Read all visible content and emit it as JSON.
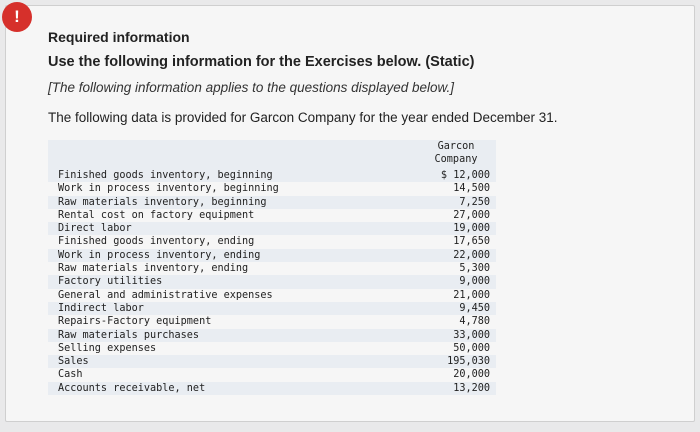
{
  "header": {
    "required": "Required information",
    "use": "Use the following information for the Exercises below. (Static)",
    "note": "[The following information applies to the questions displayed below.]",
    "intro": "The following data is provided for Garcon Company for the year ended December 31."
  },
  "table": {
    "column_header_line1": "Garcon",
    "column_header_line2": "Company",
    "rows": [
      {
        "label": "Finished goods inventory, beginning",
        "value": "$ 12,000"
      },
      {
        "label": "Work in process inventory, beginning",
        "value": "14,500"
      },
      {
        "label": "Raw materials inventory, beginning",
        "value": "7,250"
      },
      {
        "label": "Rental cost on factory equipment",
        "value": "27,000"
      },
      {
        "label": "Direct labor",
        "value": "19,000"
      },
      {
        "label": "Finished goods inventory, ending",
        "value": "17,650"
      },
      {
        "label": "Work in process inventory, ending",
        "value": "22,000"
      },
      {
        "label": "Raw materials inventory, ending",
        "value": "5,300"
      },
      {
        "label": "Factory utilities",
        "value": "9,000"
      },
      {
        "label": "General and administrative expenses",
        "value": "21,000"
      },
      {
        "label": "Indirect labor",
        "value": "9,450"
      },
      {
        "label": "Repairs-Factory equipment",
        "value": "4,780"
      },
      {
        "label": "Raw materials purchases",
        "value": "33,000"
      },
      {
        "label": "Selling expenses",
        "value": "50,000"
      },
      {
        "label": "Sales",
        "value": "195,030"
      },
      {
        "label": "Cash",
        "value": "20,000"
      },
      {
        "label": "Accounts receivable, net",
        "value": "13,200"
      }
    ]
  }
}
